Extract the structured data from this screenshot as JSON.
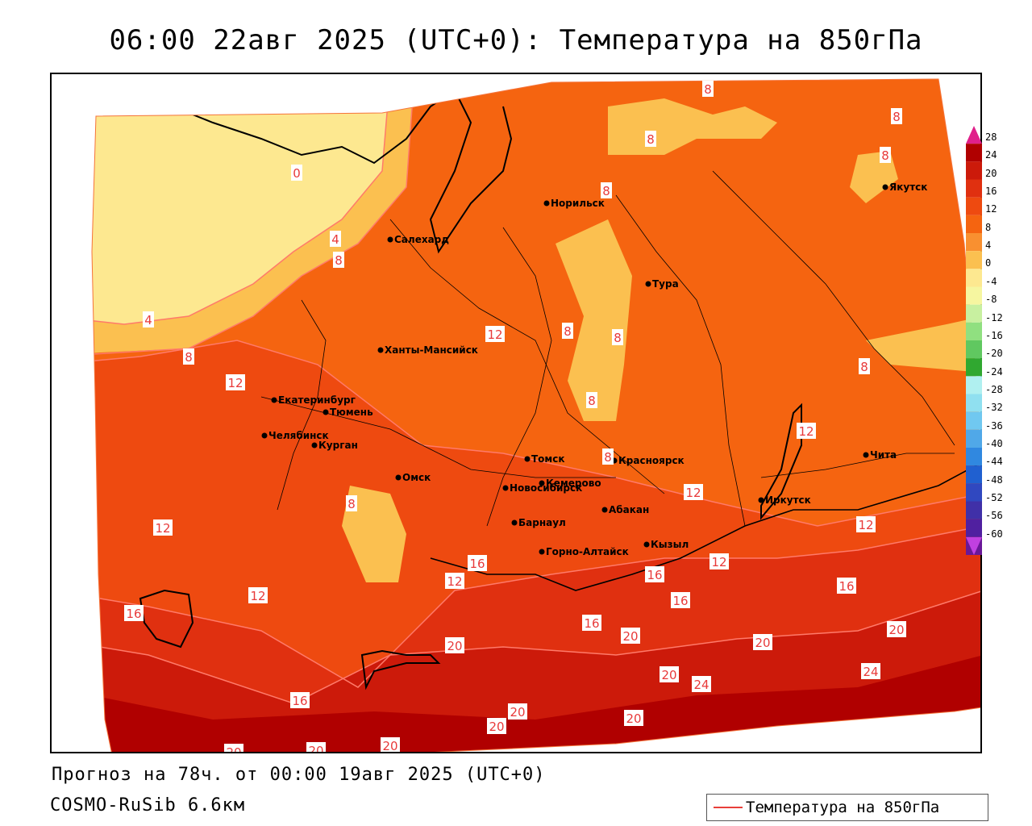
{
  "title": "06:00 22авг 2025 (UTC+0): Температура на 850гПа",
  "footer": {
    "forecast": "Прогноз на 78ч. от 00:00 19авг 2025 (UTC+0)",
    "model": "COSMO-RuSib 6.6км"
  },
  "legend": {
    "label": "Температура на 850гПа",
    "line_color": "#e8403a"
  },
  "colorbar": {
    "labels": [
      "28",
      "24",
      "20",
      "16",
      "12",
      "8",
      "4",
      "0",
      "-4",
      "-8",
      "-12",
      "-16",
      "-20",
      "-24",
      "-28",
      "-32",
      "-36",
      "-40",
      "-44",
      "-48",
      "-52",
      "-56",
      "-60"
    ],
    "colors": [
      "#b00000",
      "#cc1a0a",
      "#e03010",
      "#ee4a10",
      "#f56410",
      "#f99030",
      "#fbc050",
      "#fde890",
      "#f6f6a0",
      "#c8f0a0",
      "#90e080",
      "#60c860",
      "#30a830",
      "#b0f0f0",
      "#90e0f0",
      "#70c8f0",
      "#50a8e8",
      "#3088e0",
      "#2060d0",
      "#3048c0",
      "#4030a8",
      "#5020a0",
      "#6a1898"
    ]
  },
  "cities": [
    {
      "name": "Салехард"
    },
    {
      "name": "Норильск"
    },
    {
      "name": "Якутск"
    },
    {
      "name": "Тура"
    },
    {
      "name": "Ханты-Мансийск"
    },
    {
      "name": "Екатеринбург"
    },
    {
      "name": "Тюмень"
    },
    {
      "name": "Челябинск"
    },
    {
      "name": "Курган"
    },
    {
      "name": "Омск"
    },
    {
      "name": "Новосибирск"
    },
    {
      "name": "Томск"
    },
    {
      "name": "Кемерово"
    },
    {
      "name": "Красноярск"
    },
    {
      "name": "Барнаул"
    },
    {
      "name": "Абакан"
    },
    {
      "name": "Горно-Алтайск"
    },
    {
      "name": "Кызыл"
    },
    {
      "name": "Иркутск"
    },
    {
      "name": "Чита"
    }
  ],
  "isotherm_labels": [
    "8",
    "8",
    "8",
    "8",
    "8",
    "0",
    "4",
    "8",
    "4",
    "8",
    "12",
    "8",
    "8",
    "8",
    "8",
    "8",
    "12",
    "12",
    "12",
    "8",
    "12",
    "12",
    "16",
    "12",
    "12",
    "16",
    "16",
    "16",
    "12",
    "16",
    "16",
    "20",
    "20",
    "20",
    "24",
    "20",
    "20",
    "20",
    "24",
    "16",
    "20",
    "20",
    "20",
    "20",
    "20"
  ]
}
